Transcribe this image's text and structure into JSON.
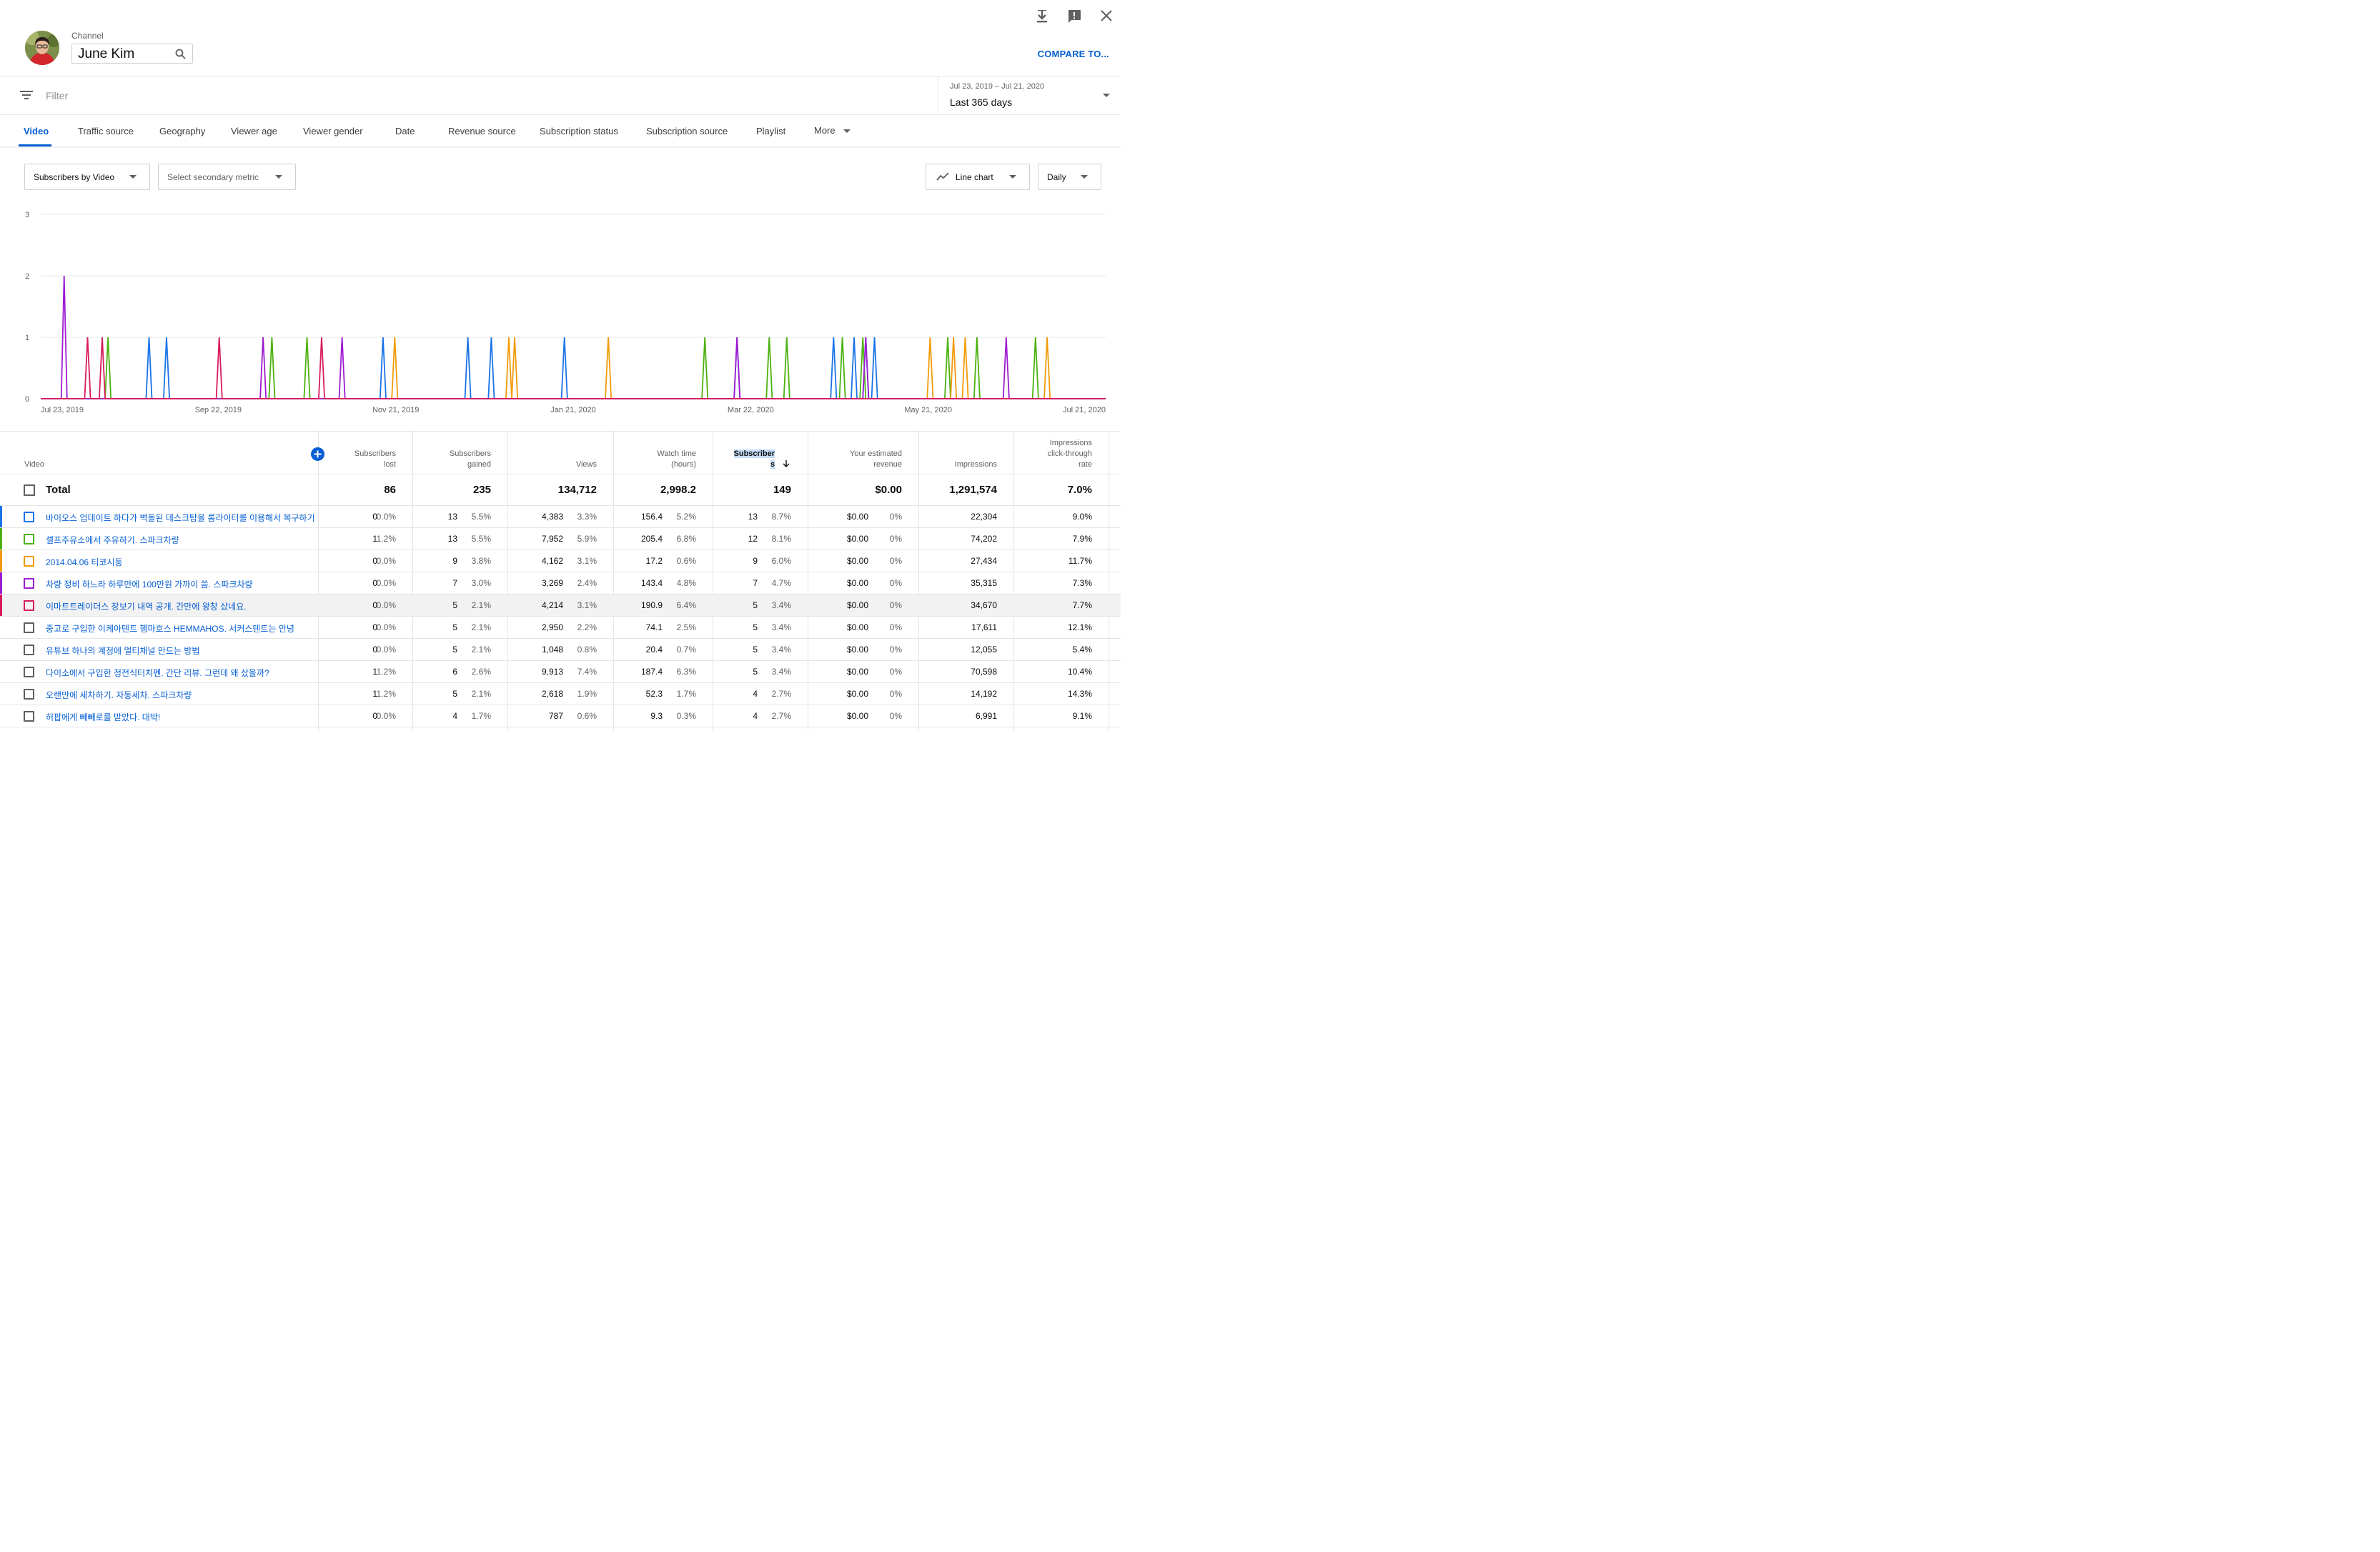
{
  "header": {
    "channel_label": "Channel",
    "channel_name": "June Kim",
    "compare_label": "COMPARE TO...",
    "icons": [
      "download-icon",
      "feedback-icon",
      "close-icon",
      "search-icon"
    ]
  },
  "filter": {
    "placeholder": "Filter",
    "date_range": "Jul 23, 2019 – Jul 21, 2020",
    "period": "Last 365 days"
  },
  "tabs": [
    {
      "label": "Video",
      "active": true
    },
    {
      "label": "Traffic source"
    },
    {
      "label": "Geography"
    },
    {
      "label": "Viewer age"
    },
    {
      "label": "Viewer gender"
    },
    {
      "label": "Date"
    },
    {
      "label": "Revenue source"
    },
    {
      "label": "Subscription status"
    },
    {
      "label": "Subscription source"
    },
    {
      "label": "Playlist"
    },
    {
      "label": "More"
    }
  ],
  "controls": {
    "primary_metric": "Subscribers by Video",
    "secondary_metric": "Select secondary metric",
    "chart_type": "Line chart",
    "granularity": "Daily"
  },
  "chart_data": {
    "type": "line",
    "ylim": [
      0,
      3
    ],
    "yticks": [
      "0",
      "1",
      "2",
      "3"
    ],
    "xticks": [
      "Jul 23, 2019",
      "Sep 22, 2019",
      "Nov 21, 2019",
      "Jan 21, 2020",
      "Mar 22, 2020",
      "May 21, 2020",
      "Jul 21, 2020"
    ],
    "x_start": "2019-07-23",
    "x_end": "2020-07-21",
    "series": [
      {
        "color": "#1a73e8",
        "spikes": [
          [
            "2019-08-29",
            1
          ],
          [
            "2019-09-04",
            1
          ],
          [
            "2019-11-17",
            1
          ],
          [
            "2019-12-16",
            1
          ],
          [
            "2019-12-24",
            1
          ],
          [
            "2020-01-18",
            1
          ],
          [
            "2020-03-17",
            1
          ],
          [
            "2020-04-19",
            1
          ],
          [
            "2020-04-26",
            1
          ],
          [
            "2020-04-30",
            1
          ],
          [
            "2020-05-03",
            1
          ]
        ]
      },
      {
        "color": "#4bb20f",
        "spikes": [
          [
            "2019-08-15",
            1
          ],
          [
            "2019-10-10",
            1
          ],
          [
            "2019-10-22",
            1
          ],
          [
            "2020-03-06",
            1
          ],
          [
            "2020-03-28",
            1
          ],
          [
            "2020-04-03",
            1
          ],
          [
            "2020-04-22",
            1
          ],
          [
            "2020-04-29",
            1
          ],
          [
            "2020-05-28",
            1
          ],
          [
            "2020-06-07",
            1
          ],
          [
            "2020-06-27",
            1
          ]
        ]
      },
      {
        "color": "#f29b09",
        "spikes": [
          [
            "2019-11-21",
            1
          ],
          [
            "2019-12-30",
            1
          ],
          [
            "2020-01-01",
            1
          ],
          [
            "2020-02-02",
            1
          ],
          [
            "2020-05-22",
            1
          ],
          [
            "2020-05-30",
            1
          ],
          [
            "2020-06-03",
            1
          ],
          [
            "2020-07-01",
            1
          ]
        ]
      },
      {
        "color": "#9f1bd1",
        "spikes": [
          [
            "2019-07-31",
            2
          ],
          [
            "2019-10-07",
            1
          ],
          [
            "2019-11-03",
            1
          ],
          [
            "2020-03-17",
            1
          ],
          [
            "2020-04-30",
            1
          ],
          [
            "2020-06-17",
            1
          ]
        ]
      },
      {
        "color": "#d81b60",
        "spikes": [
          [
            "2019-08-08",
            1
          ],
          [
            "2019-08-13",
            1
          ],
          [
            "2019-09-22",
            1
          ],
          [
            "2019-10-27",
            1
          ]
        ]
      }
    ]
  },
  "table": {
    "headers": {
      "video": "Video",
      "subs_lost": [
        "Subscribers",
        "lost"
      ],
      "subs_gained": [
        "Subscribers",
        "gained"
      ],
      "views": "Views",
      "watch_time": [
        "Watch time",
        "(hours)"
      ],
      "subscribers": [
        "Subscriber",
        "s"
      ],
      "revenue": [
        "Your estimated",
        "revenue"
      ],
      "impressions": "Impressions",
      "ctr": [
        "Impressions",
        "click-through",
        "rate"
      ]
    },
    "total": {
      "label": "Total",
      "subs_lost": "86",
      "subs_gained": "235",
      "views": "134,712",
      "watch_time": "2,998.2",
      "subscribers": "149",
      "revenue": "$0.00",
      "impressions": "1,291,574",
      "ctr": "7.0%"
    },
    "rows": [
      {
        "title": "바이오스 업데이트 하다가 벽돌된 데스크탑을 롬라이터를 이용해서 복구하기",
        "color": "#1a73e8",
        "lost": "0",
        "lost_pct": "0.0%",
        "gained": "13",
        "gained_pct": "5.5%",
        "views": "4,383",
        "views_pct": "3.3%",
        "watch": "156.4",
        "watch_pct": "5.2%",
        "subs": "13",
        "subs_pct": "8.7%",
        "rev": "$0.00",
        "rev_pct": "0%",
        "impr": "22,304",
        "ctr": "9.0%"
      },
      {
        "title": "셀프주유소에서 주유하기. 스파크차량",
        "color": "#4bb20f",
        "lost": "1",
        "lost_pct": "1.2%",
        "gained": "13",
        "gained_pct": "5.5%",
        "views": "7,952",
        "views_pct": "5.9%",
        "watch": "205.4",
        "watch_pct": "6.8%",
        "subs": "12",
        "subs_pct": "8.1%",
        "rev": "$0.00",
        "rev_pct": "0%",
        "impr": "74,202",
        "ctr": "7.9%"
      },
      {
        "title": "2014.04.06 티코시동",
        "color": "#f29b09",
        "lost": "0",
        "lost_pct": "0.0%",
        "gained": "9",
        "gained_pct": "3.8%",
        "views": "4,162",
        "views_pct": "3.1%",
        "watch": "17.2",
        "watch_pct": "0.6%",
        "subs": "9",
        "subs_pct": "6.0%",
        "rev": "$0.00",
        "rev_pct": "0%",
        "impr": "27,434",
        "ctr": "11.7%"
      },
      {
        "title": "차량 정비 하느라 하루만에 100만원 가까이 씀. 스파크차량",
        "color": "#9f1bd1",
        "lost": "0",
        "lost_pct": "0.0%",
        "gained": "7",
        "gained_pct": "3.0%",
        "views": "3,269",
        "views_pct": "2.4%",
        "watch": "143.4",
        "watch_pct": "4.8%",
        "subs": "7",
        "subs_pct": "4.7%",
        "rev": "$0.00",
        "rev_pct": "0%",
        "impr": "35,315",
        "ctr": "7.3%"
      },
      {
        "title": "이마트트레이더스 장보기 내역 공개. 간만에 왕창 샀네요.",
        "color": "#d81b60",
        "hover": true,
        "lost": "0",
        "lost_pct": "0.0%",
        "gained": "5",
        "gained_pct": "2.1%",
        "views": "4,214",
        "views_pct": "3.1%",
        "watch": "190.9",
        "watch_pct": "6.4%",
        "subs": "5",
        "subs_pct": "3.4%",
        "rev": "$0.00",
        "rev_pct": "0%",
        "impr": "34,670",
        "ctr": "7.7%"
      },
      {
        "title": "중고로 구입한 이케아텐트 헴마호스 HEMMAHOS. 서커스텐트는 안녕",
        "color": "",
        "lost": "0",
        "lost_pct": "0.0%",
        "gained": "5",
        "gained_pct": "2.1%",
        "views": "2,950",
        "views_pct": "2.2%",
        "watch": "74.1",
        "watch_pct": "2.5%",
        "subs": "5",
        "subs_pct": "3.4%",
        "rev": "$0.00",
        "rev_pct": "0%",
        "impr": "17,611",
        "ctr": "12.1%"
      },
      {
        "title": "유튜브 하나의 계정에 멀티채널 만드는 방법",
        "color": "",
        "lost": "0",
        "lost_pct": "0.0%",
        "gained": "5",
        "gained_pct": "2.1%",
        "views": "1,048",
        "views_pct": "0.8%",
        "watch": "20.4",
        "watch_pct": "0.7%",
        "subs": "5",
        "subs_pct": "3.4%",
        "rev": "$0.00",
        "rev_pct": "0%",
        "impr": "12,055",
        "ctr": "5.4%"
      },
      {
        "title": "다이소에서 구입한 정전식터치펜. 간단 리뷰. 그런데 왜 샀을까?",
        "color": "",
        "lost": "1",
        "lost_pct": "1.2%",
        "gained": "6",
        "gained_pct": "2.6%",
        "views": "9,913",
        "views_pct": "7.4%",
        "watch": "187.4",
        "watch_pct": "6.3%",
        "subs": "5",
        "subs_pct": "3.4%",
        "rev": "$0.00",
        "rev_pct": "0%",
        "impr": "70,598",
        "ctr": "10.4%"
      },
      {
        "title": "오랜만에 세차하기. 자동세차. 스파크차량",
        "color": "",
        "lost": "1",
        "lost_pct": "1.2%",
        "gained": "5",
        "gained_pct": "2.1%",
        "views": "2,618",
        "views_pct": "1.9%",
        "watch": "52.3",
        "watch_pct": "1.7%",
        "subs": "4",
        "subs_pct": "2.7%",
        "rev": "$0.00",
        "rev_pct": "0%",
        "impr": "14,192",
        "ctr": "14.3%"
      },
      {
        "title": "허팝에게 빼빼로를 받았다. 대박!",
        "color": "",
        "lost": "0",
        "lost_pct": "0.0%",
        "gained": "4",
        "gained_pct": "1.7%",
        "views": "787",
        "views_pct": "0.6%",
        "watch": "9.3",
        "watch_pct": "0.3%",
        "subs": "4",
        "subs_pct": "2.7%",
        "rev": "$0.00",
        "rev_pct": "0%",
        "impr": "6,991",
        "ctr": "9.1%"
      }
    ]
  }
}
